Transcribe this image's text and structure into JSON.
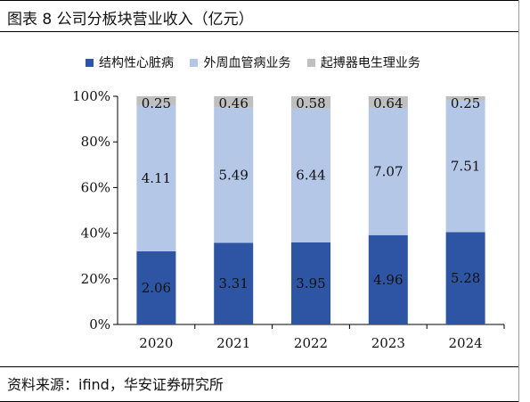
{
  "header": {
    "title": "图表 8 公司分板块营业收入（亿元）"
  },
  "footer": {
    "source": "资料来源：ifind，华安证券研究所"
  },
  "colors": {
    "structural": "#2e55a3",
    "peripheral": "#b4c7e7",
    "pacemaker": "#bfbfbf"
  },
  "chart_data": {
    "type": "bar",
    "stacked": true,
    "normalized": true,
    "categories": [
      "2020",
      "2021",
      "2022",
      "2023",
      "2024"
    ],
    "series": [
      {
        "name": "结构性心脏病",
        "values": [
          2.06,
          3.31,
          3.95,
          4.96,
          5.28
        ],
        "color": "#2e55a3"
      },
      {
        "name": "外周血管病业务",
        "values": [
          4.11,
          5.49,
          6.44,
          7.07,
          7.51
        ],
        "color": "#b4c7e7"
      },
      {
        "name": "起搏器电生理业务",
        "values": [
          0.25,
          0.46,
          0.58,
          0.64,
          0.25
        ],
        "color": "#bfbfbf"
      }
    ],
    "ytick_labels": [
      "0%",
      "20%",
      "40%",
      "60%",
      "80%",
      "100%"
    ],
    "ylim": [
      0,
      1
    ],
    "grid": false,
    "legend_position": "top"
  }
}
